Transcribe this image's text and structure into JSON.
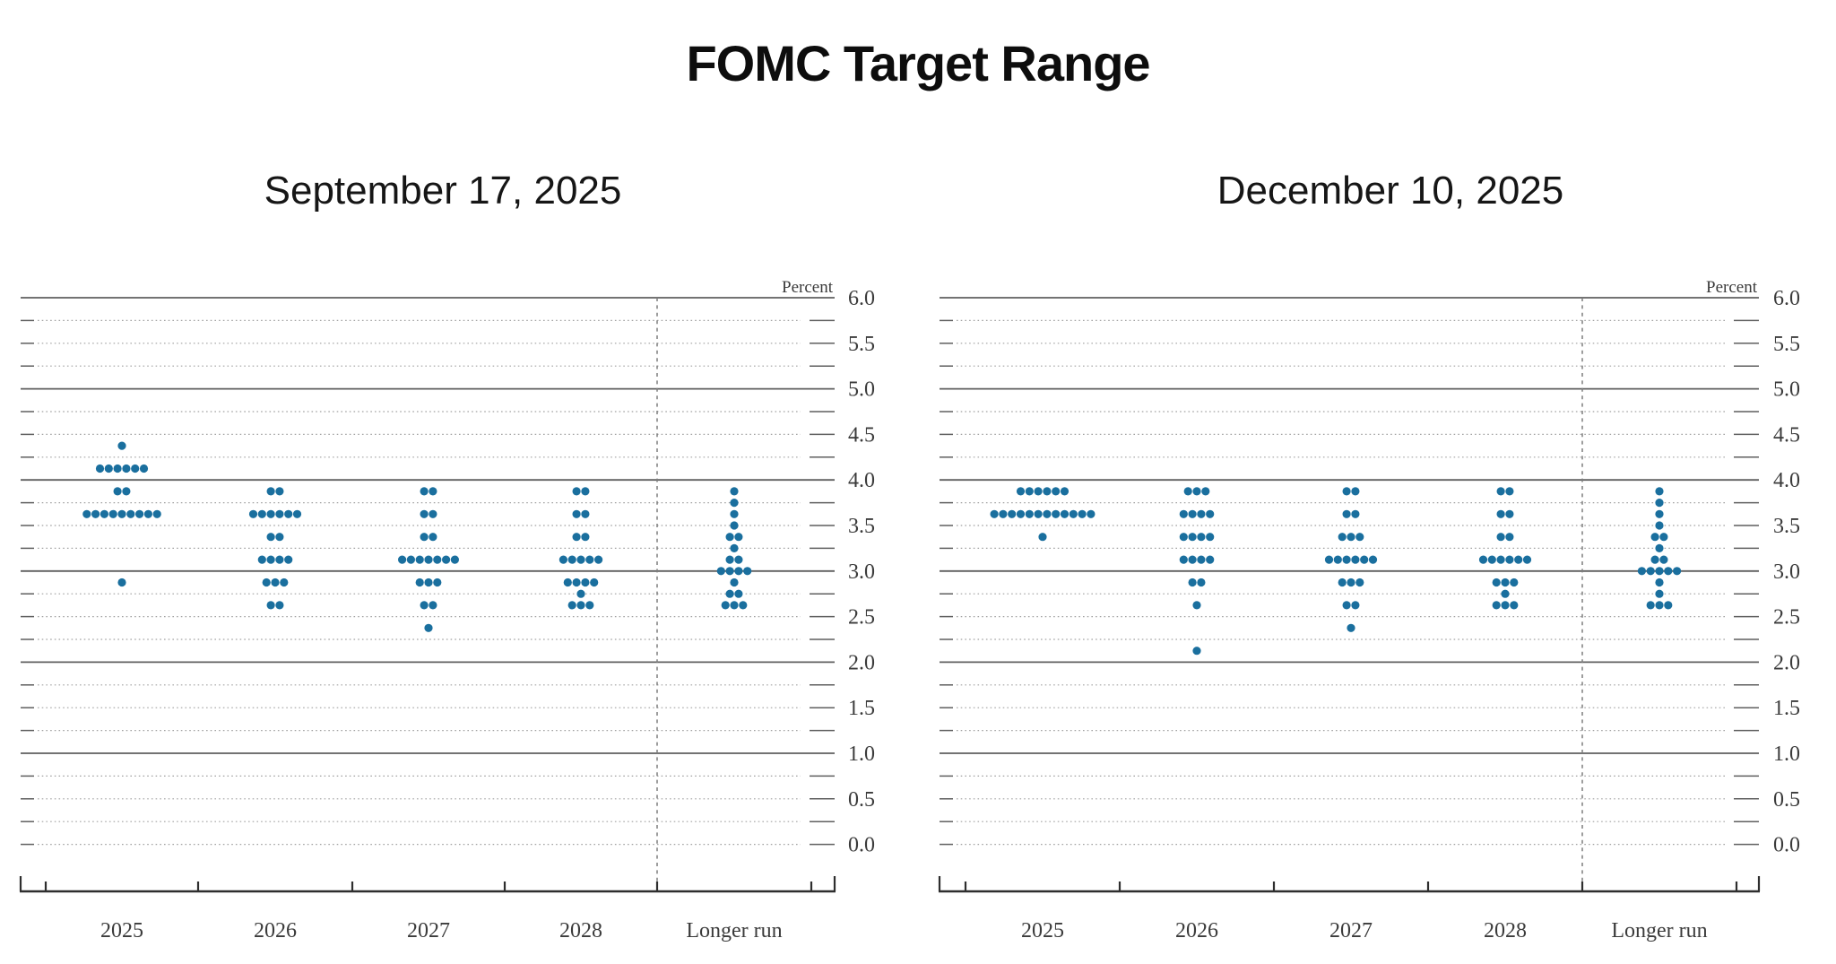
{
  "title": "FOMC Target Range",
  "dot_color": "#1a6f9e",
  "axis": {
    "percent_label": "Percent",
    "ytick_labels": [
      "6.0",
      "5.5",
      "5.0",
      "4.5",
      "4.0",
      "3.5",
      "3.0",
      "2.5",
      "2.0",
      "1.5",
      "1.0",
      "0.5",
      "0.0"
    ]
  },
  "chart_data": [
    {
      "type": "scatter",
      "title": "September 17, 2025",
      "ylabel": "Percent",
      "ylim": [
        0.0,
        6.0
      ],
      "grid_step": 0.25,
      "label_step": 0.5,
      "solid_gridlines": [
        6.0,
        5.0,
        4.0,
        3.0,
        2.0,
        1.0
      ],
      "legend": "none",
      "categories": [
        "2025",
        "2026",
        "2027",
        "2028",
        "Longer run"
      ],
      "series": [
        {
          "category": "2025",
          "dots": [
            {
              "value": 4.375,
              "count": 1
            },
            {
              "value": 4.125,
              "count": 6
            },
            {
              "value": 3.875,
              "count": 2
            },
            {
              "value": 3.625,
              "count": 9
            },
            {
              "value": 2.875,
              "count": 1
            }
          ]
        },
        {
          "category": "2026",
          "dots": [
            {
              "value": 3.875,
              "count": 2
            },
            {
              "value": 3.625,
              "count": 6
            },
            {
              "value": 3.375,
              "count": 2
            },
            {
              "value": 3.125,
              "count": 4
            },
            {
              "value": 2.875,
              "count": 3
            },
            {
              "value": 2.625,
              "count": 2
            }
          ]
        },
        {
          "category": "2027",
          "dots": [
            {
              "value": 3.875,
              "count": 2
            },
            {
              "value": 3.625,
              "count": 2
            },
            {
              "value": 3.375,
              "count": 2
            },
            {
              "value": 3.125,
              "count": 7
            },
            {
              "value": 2.875,
              "count": 3
            },
            {
              "value": 2.625,
              "count": 2
            },
            {
              "value": 2.375,
              "count": 1
            }
          ]
        },
        {
          "category": "2028",
          "dots": [
            {
              "value": 3.875,
              "count": 2
            },
            {
              "value": 3.625,
              "count": 2
            },
            {
              "value": 3.375,
              "count": 2
            },
            {
              "value": 3.125,
              "count": 5
            },
            {
              "value": 2.875,
              "count": 4
            },
            {
              "value": 2.75,
              "count": 1
            },
            {
              "value": 2.625,
              "count": 3
            }
          ]
        },
        {
          "category": "Longer run",
          "dots": [
            {
              "value": 3.875,
              "count": 1
            },
            {
              "value": 3.75,
              "count": 1
            },
            {
              "value": 3.625,
              "count": 1
            },
            {
              "value": 3.5,
              "count": 1
            },
            {
              "value": 3.375,
              "count": 2
            },
            {
              "value": 3.25,
              "count": 1
            },
            {
              "value": 3.125,
              "count": 2
            },
            {
              "value": 3.0,
              "count": 4
            },
            {
              "value": 2.875,
              "count": 1
            },
            {
              "value": 2.75,
              "count": 2
            },
            {
              "value": 2.625,
              "count": 3
            }
          ]
        }
      ]
    },
    {
      "type": "scatter",
      "title": "December 10, 2025",
      "ylabel": "Percent",
      "ylim": [
        0.0,
        6.0
      ],
      "grid_step": 0.25,
      "label_step": 0.5,
      "solid_gridlines": [
        6.0,
        5.0,
        4.0,
        3.0,
        2.0,
        1.0
      ],
      "legend": "none",
      "categories": [
        "2025",
        "2026",
        "2027",
        "2028",
        "Longer run"
      ],
      "series": [
        {
          "category": "2025",
          "dots": [
            {
              "value": 3.875,
              "count": 6
            },
            {
              "value": 3.625,
              "count": 12
            },
            {
              "value": 3.375,
              "count": 1
            }
          ]
        },
        {
          "category": "2026",
          "dots": [
            {
              "value": 3.875,
              "count": 3
            },
            {
              "value": 3.625,
              "count": 4
            },
            {
              "value": 3.375,
              "count": 4
            },
            {
              "value": 3.125,
              "count": 4
            },
            {
              "value": 2.875,
              "count": 2
            },
            {
              "value": 2.625,
              "count": 1
            },
            {
              "value": 2.125,
              "count": 1
            }
          ]
        },
        {
          "category": "2027",
          "dots": [
            {
              "value": 3.875,
              "count": 2
            },
            {
              "value": 3.625,
              "count": 2
            },
            {
              "value": 3.375,
              "count": 3
            },
            {
              "value": 3.125,
              "count": 6
            },
            {
              "value": 2.875,
              "count": 3
            },
            {
              "value": 2.625,
              "count": 2
            },
            {
              "value": 2.375,
              "count": 1
            }
          ]
        },
        {
          "category": "2028",
          "dots": [
            {
              "value": 3.875,
              "count": 2
            },
            {
              "value": 3.625,
              "count": 2
            },
            {
              "value": 3.375,
              "count": 2
            },
            {
              "value": 3.125,
              "count": 6
            },
            {
              "value": 2.875,
              "count": 3
            },
            {
              "value": 2.75,
              "count": 1
            },
            {
              "value": 2.625,
              "count": 3
            }
          ]
        },
        {
          "category": "Longer run",
          "dots": [
            {
              "value": 3.875,
              "count": 1
            },
            {
              "value": 3.75,
              "count": 1
            },
            {
              "value": 3.625,
              "count": 1
            },
            {
              "value": 3.5,
              "count": 1
            },
            {
              "value": 3.375,
              "count": 2
            },
            {
              "value": 3.25,
              "count": 1
            },
            {
              "value": 3.125,
              "count": 2
            },
            {
              "value": 3.0,
              "count": 5
            },
            {
              "value": 2.875,
              "count": 1
            },
            {
              "value": 2.75,
              "count": 1
            },
            {
              "value": 2.625,
              "count": 3
            }
          ]
        }
      ]
    }
  ]
}
